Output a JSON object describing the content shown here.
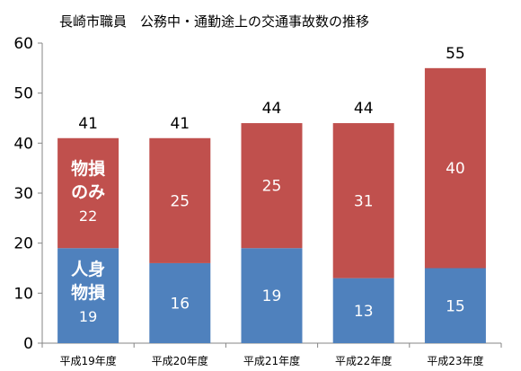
{
  "chart_data": {
    "type": "bar",
    "stacked": true,
    "title": "長崎市職員　公務中・通勤途上の交通事故数の推移",
    "categories": [
      "平成19年度",
      "平成20年度",
      "平成21年度",
      "平成22年度",
      "平成23年度"
    ],
    "series": [
      {
        "key": "personal",
        "name": "人身物損",
        "color": "#4f81bd",
        "values": [
          19,
          16,
          19,
          13,
          15
        ]
      },
      {
        "key": "property",
        "name": "物損のみ",
        "color": "#c0504d",
        "values": [
          22,
          25,
          25,
          31,
          40
        ]
      }
    ],
    "totals": [
      41,
      41,
      44,
      44,
      55
    ],
    "ylim": [
      0,
      60
    ],
    "yticks": [
      0,
      10,
      20,
      30,
      40,
      50,
      60
    ],
    "grid": false,
    "legend": "inline-first-bar",
    "inline_labels": {
      "property": [
        "物損",
        "のみ"
      ],
      "personal": [
        "人身",
        "物損"
      ]
    }
  }
}
